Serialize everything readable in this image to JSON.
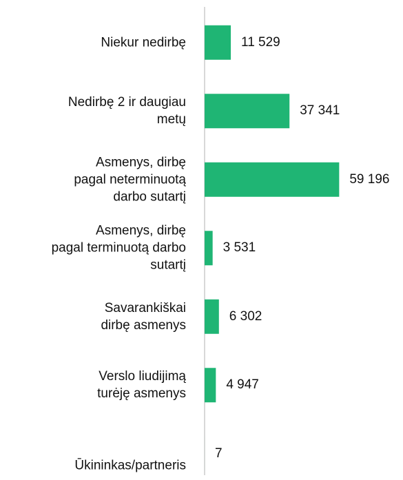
{
  "chart_data": {
    "type": "bar",
    "orientation": "horizontal",
    "categories": [
      "Niekur nedirbę",
      "Nedirbę 2 ir daugiau\nmetų",
      "Asmenys, dirbę\npagal neterminuotą\ndarbo sutartį",
      "Asmenys, dirbę\npagal terminuotą darbo\nsutartį",
      "Savarankiškai\ndirbę asmenys",
      "Verslo liudijimą\nturėję asmenys",
      "Ūkininkas/partneris"
    ],
    "values": [
      11529,
      37341,
      59196,
      3531,
      6302,
      4947,
      7
    ],
    "value_labels": [
      "11 529",
      "37 341",
      "59 196",
      "3 531",
      "6 302",
      "4 947",
      "7"
    ],
    "color": "#1fb574",
    "xlim": [
      0,
      60000
    ]
  }
}
